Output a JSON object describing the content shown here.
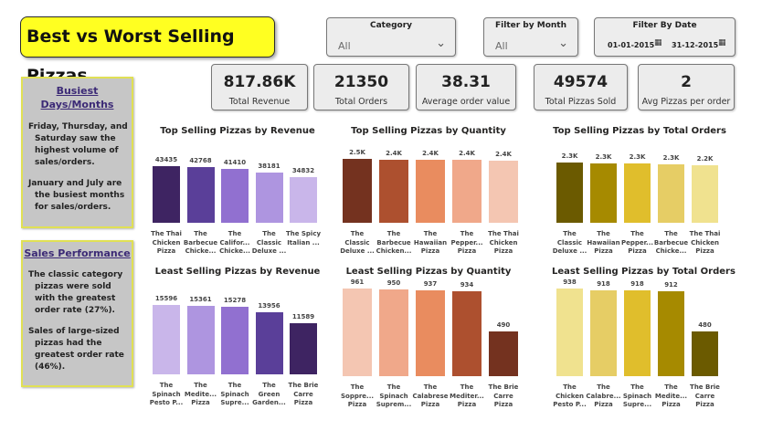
{
  "title": "Best vs Worst Selling Pizzas",
  "filters": {
    "category": {
      "label": "Category",
      "value": "All"
    },
    "month": {
      "label": "Filter by Month",
      "value": "All"
    },
    "date": {
      "label": "Filter By Date",
      "start": "01-01-2015",
      "end": "31-12-2015"
    }
  },
  "kpis": [
    {
      "value": "817.86K",
      "label": "Total Revenue"
    },
    {
      "value": "21350",
      "label": "Total Orders"
    },
    {
      "value": "38.31",
      "label": "Average order value"
    },
    {
      "value": "49574",
      "label": "Total Pizzas Sold"
    },
    {
      "value": "2",
      "label": "Avg Pizzas per order"
    }
  ],
  "insights": {
    "busiest": {
      "heading_line1": "Busiest",
      "heading_line2": "Days/Months",
      "points": [
        "Friday, Thursday, and Saturday saw the highest volume of sales/orders.",
        "January and July are the busiest months for sales/orders."
      ]
    },
    "sales": {
      "heading": "Sales Performance",
      "points": [
        "The classic category pizzas were sold with the greatest order rate (27%).",
        "Sales of large-sized pizzas had the greatest order rate (46%)."
      ]
    }
  },
  "chart_data": [
    {
      "type": "bar",
      "title": "Top Selling Pizzas by Revenue",
      "categories": [
        "The Thai Chicken Pizza",
        "The Barbecue Chicke...",
        "The Califor... Chicke...",
        "The Classic Deluxe ...",
        "The Spicy Italian ..."
      ],
      "values": [
        43435,
        42768,
        41410,
        38181,
        34832
      ],
      "labels": [
        "43435",
        "42768",
        "41410",
        "38181",
        "34832"
      ],
      "ylim": [
        0,
        43435
      ],
      "colors": [
        "#3e2462",
        "#5a3f99",
        "#9170d0",
        "#ae95e0",
        "#c9b6ea"
      ]
    },
    {
      "type": "bar",
      "title": "Top Selling Pizzas by Quantity",
      "categories": [
        "The Classic Deluxe ...",
        "The Barbecue Chicken...",
        "The Hawaiian Pizza",
        "The Pepper... Pizza",
        "The Thai Chicken Pizza"
      ],
      "values": [
        2453,
        2432,
        2422,
        2418,
        2371
      ],
      "labels": [
        "2.5K",
        "2.4K",
        "2.4K",
        "2.4K",
        "2.4K"
      ],
      "ylim": [
        0,
        2453
      ],
      "colors": [
        "#74321f",
        "#ad502f",
        "#e98c5f",
        "#f0a88a",
        "#f4c6b2"
      ]
    },
    {
      "type": "bar",
      "title": "Top Selling Pizzas by Total Orders",
      "categories": [
        "The Classic Deluxe ...",
        "The Hawaiian Pizza",
        "The Pepper... Pizza",
        "The Barbecue Chicke...",
        "The Thai Chicken Pizza"
      ],
      "values": [
        2329,
        2280,
        2278,
        2273,
        2225
      ],
      "labels": [
        "2.3K",
        "2.3K",
        "2.3K",
        "2.3K",
        "2.2K"
      ],
      "ylim": [
        0,
        2329
      ],
      "colors": [
        "#6b5a00",
        "#a68a00",
        "#e0be2c",
        "#e6cd65",
        "#f0e28f"
      ]
    },
    {
      "type": "bar",
      "title": "Least Selling Pizzas by Revenue",
      "categories": [
        "The Spinach Pesto P...",
        "The Medite... Pizza",
        "The Spinach Supre...",
        "The Green Garden...",
        "The Brie Carre Pizza"
      ],
      "values": [
        15596,
        15361,
        15278,
        13956,
        11589
      ],
      "labels": [
        "15596",
        "15361",
        "15278",
        "13956",
        "11589"
      ],
      "ylim": [
        0,
        15596
      ],
      "colors": [
        "#c9b6ea",
        "#ae95e0",
        "#9170d0",
        "#5a3f99",
        "#3e2462"
      ]
    },
    {
      "type": "bar",
      "title": "Least Selling Pizzas by Quantity",
      "categories": [
        "The Soppre... Pizza",
        "The Spinach Suprem...",
        "The Calabrese Pizza",
        "The Mediter... Pizza",
        "The Brie Carre Pizza"
      ],
      "values": [
        961,
        950,
        937,
        934,
        490
      ],
      "labels": [
        "961",
        "950",
        "937",
        "934",
        "490"
      ],
      "ylim": [
        0,
        961
      ],
      "colors": [
        "#f4c6b2",
        "#f0a88a",
        "#e98c5f",
        "#ad502f",
        "#74321f"
      ]
    },
    {
      "type": "bar",
      "title": "Least Selling Pizzas by Total Orders",
      "categories": [
        "The Chicken Pesto P...",
        "The Calabre... Pizza",
        "The Spinach Supre...",
        "The Medite... Pizza",
        "The Brie Carre Pizza"
      ],
      "values": [
        938,
        918,
        918,
        912,
        480
      ],
      "labels": [
        "938",
        "918",
        "918",
        "912",
        "480"
      ],
      "ylim": [
        0,
        938
      ],
      "colors": [
        "#f0e28f",
        "#e6cd65",
        "#e0be2c",
        "#a68a00",
        "#6b5a00"
      ]
    }
  ]
}
